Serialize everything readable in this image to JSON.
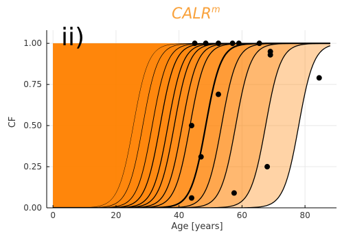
{
  "chart_data": {
    "type": "line",
    "title": "CALR",
    "title_superscript": "m",
    "panel_label": "ii)",
    "xlabel": "Age [years]",
    "ylabel": "CF",
    "xlim": [
      -2,
      90
    ],
    "ylim": [
      0,
      1.08
    ],
    "xticks": [
      0,
      20,
      40,
      60,
      80
    ],
    "yticks": [
      0.0,
      0.25,
      0.5,
      0.75,
      1.0
    ],
    "ytick_labels": [
      "0.00",
      "0.25",
      "0.50",
      "0.75",
      "1.00"
    ],
    "grid": true,
    "sigmoid_steepness": 0.42,
    "curve_midpoints": [
      25.5,
      28.5,
      31.5,
      34.0,
      36.5,
      38.5,
      41.0,
      43.5,
      48.5,
      53.5,
      58.0,
      67.5,
      78.0
    ],
    "emphasized_curve_midpoint": 48.5,
    "points": [
      {
        "x": 45,
        "y": 1.0
      },
      {
        "x": 48.5,
        "y": 1.0
      },
      {
        "x": 52.5,
        "y": 1.0
      },
      {
        "x": 57,
        "y": 1.0
      },
      {
        "x": 59,
        "y": 1.0
      },
      {
        "x": 65.5,
        "y": 1.0
      },
      {
        "x": 69,
        "y": 0.95
      },
      {
        "x": 69,
        "y": 0.93
      },
      {
        "x": 84.5,
        "y": 0.79
      },
      {
        "x": 52.5,
        "y": 0.69
      },
      {
        "x": 44,
        "y": 0.5
      },
      {
        "x": 47,
        "y": 0.31
      },
      {
        "x": 68,
        "y": 0.25
      },
      {
        "x": 57.5,
        "y": 0.09
      },
      {
        "x": 44,
        "y": 0.06
      }
    ],
    "colors": {
      "fill": "#FF8000",
      "curve": "#000000",
      "point": "#000000",
      "title": "#F9A23C",
      "grid": "#E8E8E8"
    }
  }
}
